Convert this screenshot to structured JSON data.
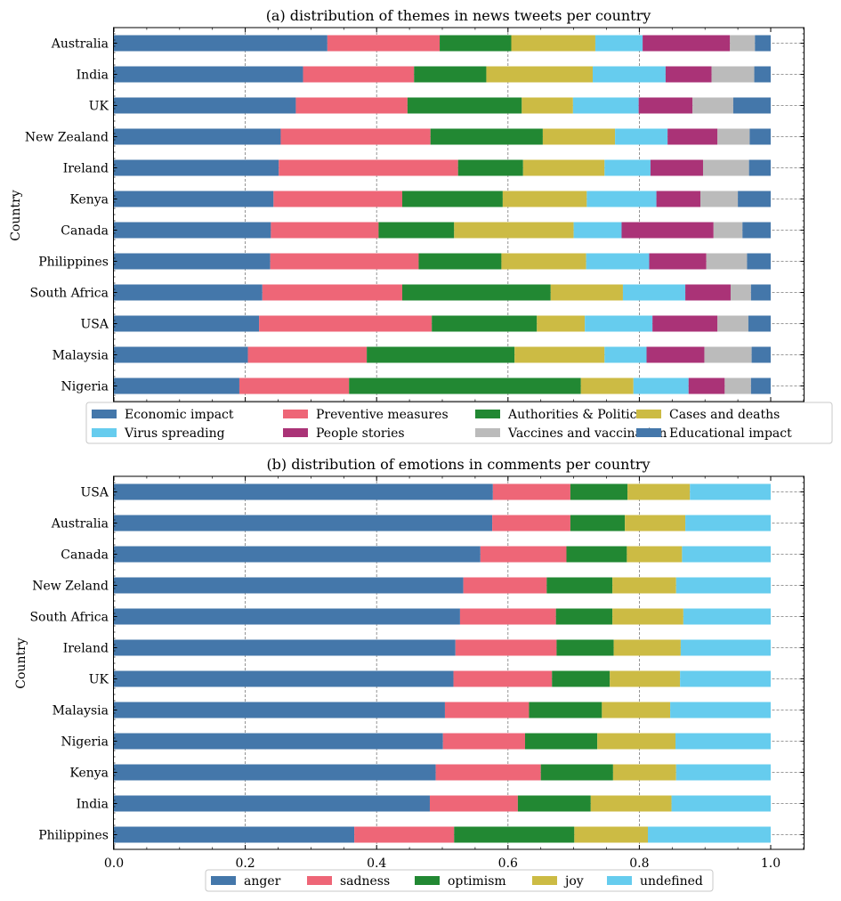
{
  "colors": {
    "steel_blue": "#4477AA",
    "rose": "#EE6677",
    "green": "#228833",
    "olive_yellow": "#CCBB44",
    "sky": "#66CCEE",
    "purple": "#AA3377",
    "grey": "#BBBBBB"
  },
  "chart_data": [
    {
      "type": "bar",
      "orientation": "horizontal",
      "stacked": true,
      "title": "(a) distribution of themes in news tweets per country",
      "xlabel": "",
      "ylabel": "Country",
      "xlim": [
        0,
        1.05
      ],
      "xticks": [],
      "grid": true,
      "legend_position": "bottom-outside",
      "legend_columns": 4,
      "categories": [
        "Australia",
        "India",
        "UK",
        "New Zealand",
        "Ireland",
        "Kenya",
        "Canada",
        "Philippines",
        "South Africa",
        "USA",
        "Malaysia",
        "Nigeria"
      ],
      "series": [
        {
          "name": "Economic impact",
          "color": "#4477AA",
          "values": [
            0.325,
            0.288,
            0.277,
            0.254,
            0.251,
            0.243,
            0.239,
            0.238,
            0.226,
            0.221,
            0.204,
            0.191
          ]
        },
        {
          "name": "Preventive measures",
          "color": "#EE6677",
          "values": [
            0.171,
            0.169,
            0.17,
            0.228,
            0.273,
            0.196,
            0.164,
            0.226,
            0.213,
            0.263,
            0.181,
            0.167
          ]
        },
        {
          "name": "Authorities & Politics",
          "color": "#228833",
          "values": [
            0.109,
            0.11,
            0.174,
            0.171,
            0.099,
            0.153,
            0.115,
            0.126,
            0.226,
            0.16,
            0.225,
            0.353
          ]
        },
        {
          "name": "Cases and deaths",
          "color": "#CCBB44",
          "values": [
            0.128,
            0.162,
            0.078,
            0.11,
            0.124,
            0.128,
            0.182,
            0.129,
            0.11,
            0.073,
            0.137,
            0.08
          ]
        },
        {
          "name": "Virus spreading",
          "color": "#66CCEE",
          "values": [
            0.072,
            0.111,
            0.1,
            0.08,
            0.07,
            0.106,
            0.073,
            0.096,
            0.095,
            0.103,
            0.064,
            0.084
          ]
        },
        {
          "name": "People stories",
          "color": "#AA3377",
          "values": [
            0.133,
            0.07,
            0.082,
            0.076,
            0.08,
            0.067,
            0.14,
            0.087,
            0.069,
            0.099,
            0.088,
            0.055
          ]
        },
        {
          "name": "Vaccines and vaccination",
          "color": "#BBBBBB",
          "values": [
            0.038,
            0.065,
            0.062,
            0.049,
            0.07,
            0.057,
            0.044,
            0.062,
            0.031,
            0.047,
            0.072,
            0.04
          ]
        },
        {
          "name": "Educational impact",
          "color": "#4477AA",
          "values": [
            0.024,
            0.025,
            0.057,
            0.032,
            0.033,
            0.05,
            0.043,
            0.036,
            0.03,
            0.034,
            0.029,
            0.03
          ]
        }
      ]
    },
    {
      "type": "bar",
      "orientation": "horizontal",
      "stacked": true,
      "title": "(b) distribution of emotions in comments per country",
      "xlabel": "",
      "ylabel": "Country",
      "xlim": [
        0,
        1.05
      ],
      "xticks": [
        "0.0",
        "0.2",
        "0.4",
        "0.6",
        "0.8",
        "1.0"
      ],
      "grid": true,
      "legend_position": "bottom-outside",
      "legend_columns": 5,
      "categories": [
        "USA",
        "Australia",
        "Canada",
        "New Zeland",
        "South Africa",
        "Ireland",
        "UK",
        "Malaysia",
        "Nigeria",
        "Kenya",
        "India",
        "Philippines"
      ],
      "series": [
        {
          "name": "anger",
          "color": "#4477AA",
          "values": [
            0.577,
            0.576,
            0.558,
            0.532,
            0.527,
            0.52,
            0.517,
            0.504,
            0.501,
            0.49,
            0.481,
            0.366
          ]
        },
        {
          "name": "sadness",
          "color": "#EE6677",
          "values": [
            0.118,
            0.119,
            0.131,
            0.127,
            0.146,
            0.154,
            0.15,
            0.128,
            0.125,
            0.16,
            0.134,
            0.152
          ]
        },
        {
          "name": "optimism",
          "color": "#228833",
          "values": [
            0.087,
            0.083,
            0.092,
            0.1,
            0.086,
            0.087,
            0.088,
            0.111,
            0.11,
            0.11,
            0.111,
            0.183
          ]
        },
        {
          "name": "joy",
          "color": "#CCBB44",
          "values": [
            0.095,
            0.092,
            0.084,
            0.097,
            0.108,
            0.102,
            0.107,
            0.104,
            0.119,
            0.096,
            0.123,
            0.112
          ]
        },
        {
          "name": "undefined",
          "color": "#66CCEE",
          "values": [
            0.123,
            0.13,
            0.135,
            0.144,
            0.133,
            0.137,
            0.138,
            0.153,
            0.145,
            0.144,
            0.151,
            0.187
          ]
        }
      ]
    }
  ]
}
